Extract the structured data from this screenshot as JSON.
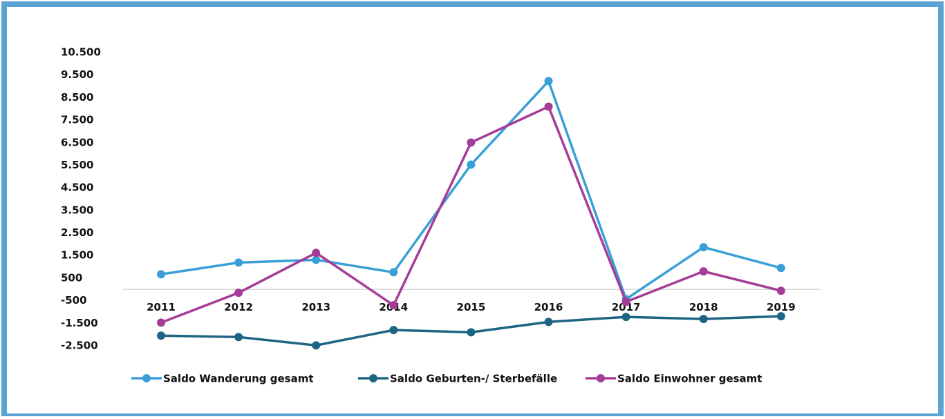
{
  "chart_data": {
    "type": "line",
    "categories": [
      "2011",
      "2012",
      "2013",
      "2014",
      "2015",
      "2016",
      "2017",
      "2018",
      "2019"
    ],
    "series": [
      {
        "name": "Saldo Wanderung gesamt",
        "color": "#3a9fd6",
        "values": [
          670,
          1190,
          1310,
          760,
          5530,
          9230,
          -430,
          1870,
          950
        ]
      },
      {
        "name": "Saldo Geburten-/ Sterbefälle",
        "color": "#1d6583",
        "values": [
          -2050,
          -2110,
          -2480,
          -1800,
          -1900,
          -1440,
          -1220,
          -1310,
          -1190
        ]
      },
      {
        "name": "Saldo Einwohner gesamt",
        "color": "#a53c97",
        "values": [
          -1470,
          -150,
          1620,
          -700,
          6510,
          8100,
          -550,
          800,
          -60
        ]
      }
    ],
    "ylim": [
      -2500,
      10500
    ],
    "yticks": [
      {
        "value": 10500,
        "label": "10.500"
      },
      {
        "value": 9500,
        "label": "9.500"
      },
      {
        "value": 8500,
        "label": "8.500"
      },
      {
        "value": 7500,
        "label": "7.500"
      },
      {
        "value": 6500,
        "label": "6.500"
      },
      {
        "value": 5500,
        "label": "5.500"
      },
      {
        "value": 4500,
        "label": "4.500"
      },
      {
        "value": 3500,
        "label": "3.500"
      },
      {
        "value": 2500,
        "label": "2.500"
      },
      {
        "value": 1500,
        "label": "1.500"
      },
      500,
      -500,
      {
        "value": -1500,
        "label": "-1.500"
      },
      {
        "value": -2500,
        "label": "-2.500"
      }
    ],
    "negative_tick_color": "#f07d2a",
    "legend": "bottom"
  }
}
